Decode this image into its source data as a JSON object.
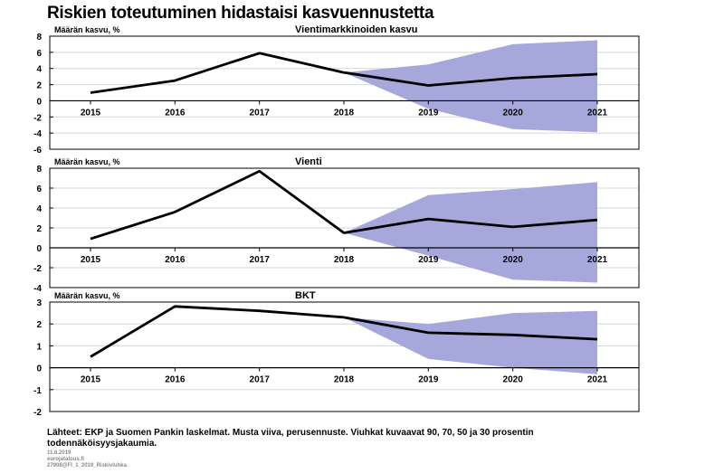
{
  "page": {
    "title": "Riskien toteutuminen hidastaisi kasvuennustetta",
    "source": "Lähteet: EKP ja Suomen Pankin laskelmat. Musta viiva, perusennuste. Viuhkat kuvaavat 90, 70, 50 ja 30 prosentin todennäköisyysjakaumia.",
    "date": "11.6.2019",
    "team": "eurojatalous.fi",
    "chart_id": "27908@FI_1_2019_Riskiviuhka"
  },
  "chart_data": [
    {
      "type": "line",
      "title": "Vientimarkkinoiden kasvu",
      "ylabel": "Määrän kasvu, %",
      "x": [
        "2015",
        "2016",
        "2017",
        "2018",
        "2019",
        "2020",
        "2021"
      ],
      "values": [
        1.0,
        2.5,
        5.9,
        3.5,
        1.9,
        2.8,
        3.3
      ],
      "fan_lower": [
        null,
        null,
        null,
        3.5,
        -1.0,
        -3.5,
        -3.9
      ],
      "fan_upper": [
        null,
        null,
        null,
        3.5,
        4.5,
        7.0,
        7.5
      ],
      "ylim": [
        -6,
        8
      ],
      "yticks": [
        "-6",
        "-4",
        "-2",
        "0",
        "2",
        "4",
        "6",
        "8"
      ],
      "colors": {
        "line": "#000000",
        "fan": "#a6a8dc"
      }
    },
    {
      "type": "line",
      "title": "Vienti",
      "ylabel": "Määrän kasvu, %",
      "x": [
        "2015",
        "2016",
        "2017",
        "2018",
        "2019",
        "2020",
        "2021"
      ],
      "values": [
        0.9,
        3.6,
        7.7,
        1.5,
        2.9,
        2.1,
        2.8
      ],
      "fan_lower": [
        null,
        null,
        null,
        1.5,
        -0.8,
        -3.2,
        -3.5
      ],
      "fan_upper": [
        null,
        null,
        null,
        1.5,
        5.3,
        5.9,
        6.6
      ],
      "ylim": [
        -4,
        8
      ],
      "yticks": [
        "-4",
        "-2",
        "0",
        "2",
        "4",
        "6",
        "8"
      ],
      "colors": {
        "line": "#000000",
        "fan": "#a6a8dc"
      }
    },
    {
      "type": "line",
      "title": "BKT",
      "ylabel": "Määrän kasvu, %",
      "x": [
        "2015",
        "2016",
        "2017",
        "2018",
        "2019",
        "2020",
        "2021"
      ],
      "values": [
        0.5,
        2.8,
        2.6,
        2.3,
        1.6,
        1.5,
        1.3
      ],
      "fan_lower": [
        null,
        null,
        null,
        2.3,
        0.4,
        0.0,
        -0.3
      ],
      "fan_upper": [
        null,
        null,
        null,
        2.3,
        2.0,
        2.5,
        2.6
      ],
      "ylim": [
        -2,
        3
      ],
      "yticks": [
        "-2",
        "-1",
        "0",
        "1",
        "2",
        "3"
      ],
      "colors": {
        "line": "#000000",
        "fan": "#a6a8dc"
      }
    }
  ]
}
